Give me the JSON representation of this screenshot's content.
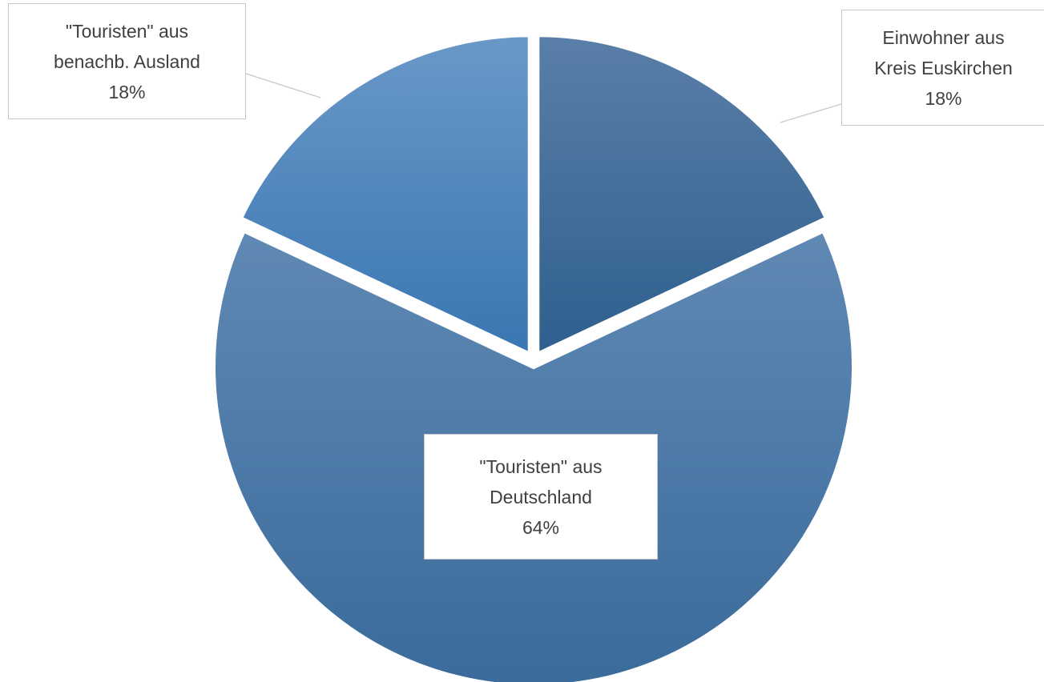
{
  "chart_data": {
    "type": "pie",
    "title": "",
    "colors": {
      "einwohner": [
        "#5a7fa8",
        "#2e5f8e"
      ],
      "deutschland": [
        "#6089b4",
        "#3a6b9b"
      ],
      "ausland": [
        "#6a98c8",
        "#3a76b2"
      ],
      "callout_border": "#c8c8c8",
      "text": "#404040"
    },
    "slices": [
      {
        "label_lines": [
          "Einwohner aus",
          "Kreis Euskirchen"
        ],
        "value_label": "18%",
        "value": 18
      },
      {
        "label_lines": [
          "\"Touristen\" aus",
          "Deutschland"
        ],
        "value_label": "64%",
        "value": 64
      },
      {
        "label_lines": [
          "\"Touristen\" aus",
          "benachb. Ausland"
        ],
        "value_label": "18%",
        "value": 18
      }
    ]
  }
}
